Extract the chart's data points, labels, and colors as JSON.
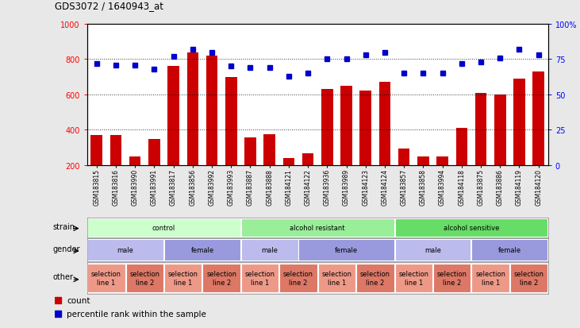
{
  "title": "GDS3072 / 1640943_at",
  "samples": [
    "GSM183815",
    "GSM183816",
    "GSM183990",
    "GSM183991",
    "GSM183817",
    "GSM183856",
    "GSM183992",
    "GSM183993",
    "GSM183887",
    "GSM183888",
    "GSM184121",
    "GSM184122",
    "GSM183936",
    "GSM183989",
    "GSM184123",
    "GSM184124",
    "GSM183857",
    "GSM183858",
    "GSM183994",
    "GSM184118",
    "GSM183875",
    "GSM183886",
    "GSM184119",
    "GSM184120"
  ],
  "counts": [
    370,
    370,
    250,
    345,
    760,
    840,
    820,
    700,
    355,
    375,
    240,
    265,
    630,
    650,
    620,
    670,
    295,
    250,
    250,
    410,
    610,
    600,
    690,
    730
  ],
  "percentiles": [
    72,
    71,
    71,
    68,
    77,
    82,
    80,
    70,
    69,
    69,
    63,
    65,
    75,
    75,
    78,
    80,
    65,
    65,
    65,
    72,
    73,
    76,
    82,
    78
  ],
  "bar_color": "#cc0000",
  "dot_color": "#0000cc",
  "ylim_left": [
    200,
    1000
  ],
  "ylim_right": [
    0,
    100
  ],
  "yticks_left": [
    200,
    400,
    600,
    800,
    1000
  ],
  "yticks_right": [
    0,
    25,
    50,
    75,
    100
  ],
  "ytick_labels_right": [
    "0",
    "25",
    "50",
    "75",
    "100%"
  ],
  "grid_values": [
    400,
    600,
    800
  ],
  "strain_groups": [
    {
      "label": "control",
      "start": 0,
      "end": 8,
      "color": "#ccffcc"
    },
    {
      "label": "alcohol resistant",
      "start": 8,
      "end": 16,
      "color": "#99ee99"
    },
    {
      "label": "alcohol sensitive",
      "start": 16,
      "end": 24,
      "color": "#66dd66"
    }
  ],
  "gender_groups": [
    {
      "label": "male",
      "start": 0,
      "end": 4,
      "color": "#bbbbee"
    },
    {
      "label": "female",
      "start": 4,
      "end": 8,
      "color": "#9999dd"
    },
    {
      "label": "male",
      "start": 8,
      "end": 11,
      "color": "#bbbbee"
    },
    {
      "label": "female",
      "start": 11,
      "end": 16,
      "color": "#9999dd"
    },
    {
      "label": "male",
      "start": 16,
      "end": 20,
      "color": "#bbbbee"
    },
    {
      "label": "female",
      "start": 20,
      "end": 24,
      "color": "#9999dd"
    }
  ],
  "other_groups": [
    {
      "label": "selection\nline 1",
      "start": 0,
      "end": 2,
      "color": "#ee9988"
    },
    {
      "label": "selection\nline 2",
      "start": 2,
      "end": 4,
      "color": "#dd7766"
    },
    {
      "label": "selection\nline 1",
      "start": 4,
      "end": 6,
      "color": "#ee9988"
    },
    {
      "label": "selection\nline 2",
      "start": 6,
      "end": 8,
      "color": "#dd7766"
    },
    {
      "label": "selection\nline 1",
      "start": 8,
      "end": 10,
      "color": "#ee9988"
    },
    {
      "label": "selection\nline 2",
      "start": 10,
      "end": 12,
      "color": "#dd7766"
    },
    {
      "label": "selection\nline 1",
      "start": 12,
      "end": 14,
      "color": "#ee9988"
    },
    {
      "label": "selection\nline 2",
      "start": 14,
      "end": 16,
      "color": "#dd7766"
    },
    {
      "label": "selection\nline 1",
      "start": 16,
      "end": 18,
      "color": "#ee9988"
    },
    {
      "label": "selection\nline 2",
      "start": 18,
      "end": 20,
      "color": "#dd7766"
    },
    {
      "label": "selection\nline 1",
      "start": 20,
      "end": 22,
      "color": "#ee9988"
    },
    {
      "label": "selection\nline 2",
      "start": 22,
      "end": 24,
      "color": "#dd7766"
    }
  ],
  "background_color": "#e8e8e8",
  "plot_bg": "#ffffff",
  "fig_width": 7.31,
  "fig_height": 4.14,
  "dpi": 100
}
